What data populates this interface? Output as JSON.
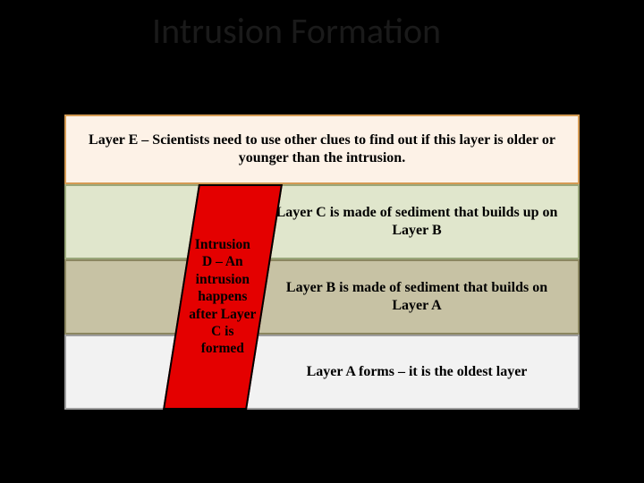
{
  "title": "Intrusion Formation",
  "layers": {
    "e": {
      "label": "Layer E – Scientists need to use other clues to find out if this layer is older or younger than the intrusion.",
      "fill": "#fdf2e7",
      "border": "#d49b54"
    },
    "c": {
      "label": "Layer C is made of sediment that builds up on Layer B",
      "fill": "#e0e6cc",
      "border": "#9aa77a"
    },
    "b": {
      "label": "Layer B is made of sediment that builds on Layer A",
      "fill": "#c7c2a4",
      "border": "#8b8660"
    },
    "a": {
      "label": "Layer A forms –  it is the oldest layer",
      "fill": "#f2f2f2",
      "border": "#9e9e9e"
    }
  },
  "intrusion": {
    "label": "Intrusion D – An intrusion happens after Layer C is formed",
    "fill": "#e40000",
    "border": "#000000"
  },
  "colors": {
    "background": "#000000",
    "title_text": "#1a1a1a"
  },
  "typography": {
    "title_fontsize": 40,
    "label_fontsize": 16,
    "label_font": "Georgia, Times New Roman, serif",
    "title_font": "Calibri, Arial, sans-serif"
  }
}
